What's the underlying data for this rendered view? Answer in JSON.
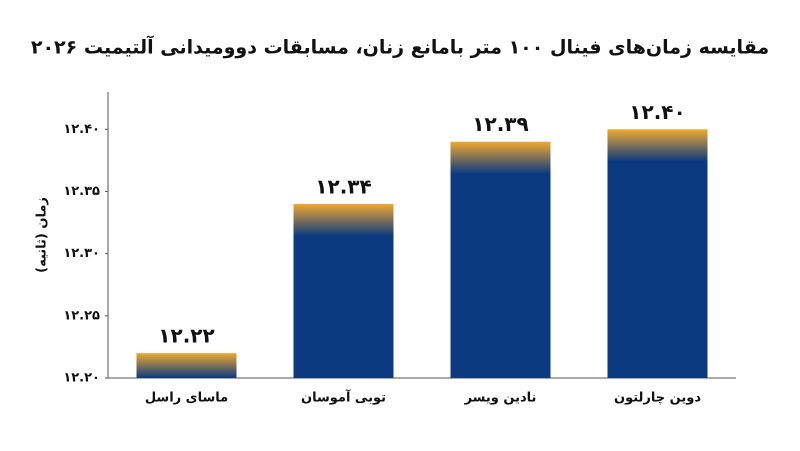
{
  "chart_data": {
    "type": "bar",
    "title": "مقایسه زمان‌های فینال ۱۰۰ متر بامانع زنان، مسابقات دوومیدانی آلتیمیت ۲۰۲۶",
    "y_label": "زمان (ثانیه)",
    "categories": [
      "ماسای راسل",
      "توبی آموسان",
      "نادین ویسر",
      "دوین چارلتون"
    ],
    "values": [
      12.22,
      12.34,
      12.39,
      12.4
    ],
    "value_labels": [
      "۱۲.۲۲",
      "۱۲.۳۴",
      "۱۲.۳۹",
      "۱۲.۴۰"
    ],
    "color": "#0c3a80",
    "highlight_color": "#f0a830",
    "ylim": [
      12.2,
      12.43
    ],
    "yticks": [
      {
        "value": 12.2,
        "label": "۱۲.۲۰"
      },
      {
        "value": 12.25,
        "label": "۱۲.۲۵"
      },
      {
        "value": 12.3,
        "label": "۱۲.۳۰"
      },
      {
        "value": 12.35,
        "label": "۱۲.۳۵"
      },
      {
        "value": 12.4,
        "label": "۱۲.۴۰"
      }
    ],
    "grid": false
  }
}
